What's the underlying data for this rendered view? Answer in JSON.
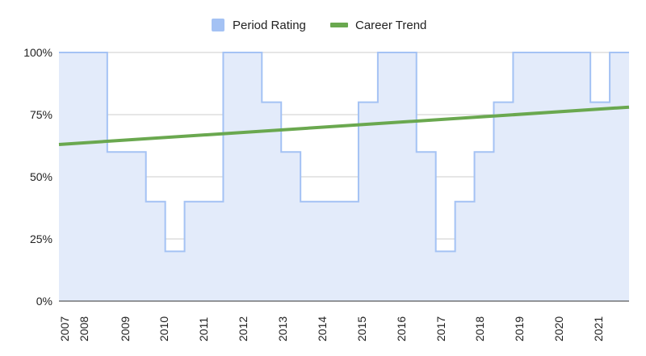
{
  "chart_data": {
    "type": "area",
    "legend_position": "top",
    "grid": true,
    "ylim": [
      0,
      100
    ],
    "y_ticks": [
      "0%",
      "25%",
      "50%",
      "75%",
      "100%"
    ],
    "x_tick_labels": [
      "2007",
      "2008",
      "2009",
      "2010",
      "2011",
      "2012",
      "2013",
      "2014",
      "2015",
      "2016",
      "2017",
      "2018",
      "2019",
      "2020",
      "2021"
    ],
    "series": [
      {
        "name": "Period Rating",
        "kind": "stepped-area",
        "color": "#a4c2f4",
        "fill_color": "#e3ebfa",
        "x": [
          2007.0,
          2008.25,
          2009.25,
          2009.75,
          2010.25,
          2011.25,
          2012.25,
          2012.75,
          2013.25,
          2014.75,
          2015.25,
          2016.25,
          2016.75,
          2017.25,
          2017.75,
          2018.25,
          2018.75,
          2020.25,
          2020.75,
          2021.25
        ],
        "values": [
          100,
          60,
          40,
          20,
          40,
          100,
          80,
          60,
          40,
          80,
          100,
          60,
          20,
          40,
          60,
          80,
          100,
          100,
          80,
          100
        ],
        "x_end": 2021.75
      },
      {
        "name": "Career Trend",
        "kind": "line",
        "color": "#6aa84f",
        "x": [
          2007.0,
          2021.75
        ],
        "values": [
          63,
          78
        ]
      }
    ]
  }
}
